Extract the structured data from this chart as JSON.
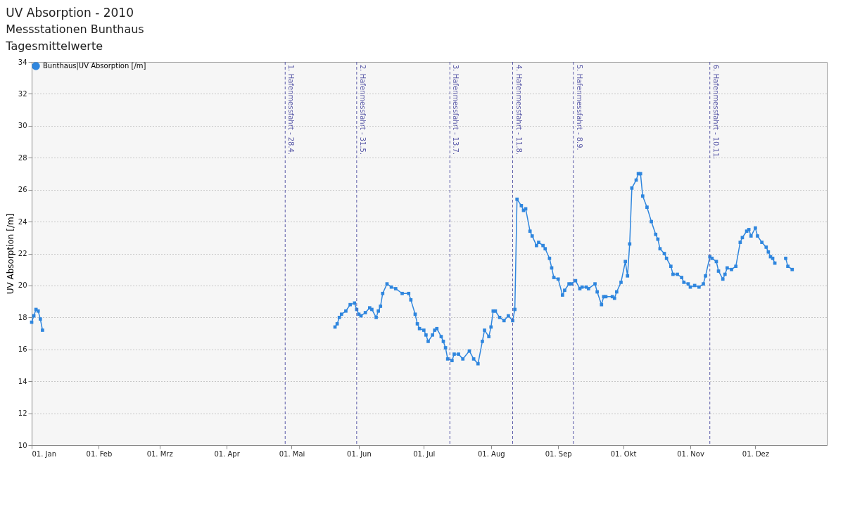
{
  "chart_data": {
    "type": "line",
    "title": "UV Absorption - 2010",
    "subtitle": "Messstationen Bunthaus\nTagesmittelwerte",
    "ylabel": "UV Absorption [/m]",
    "x": [
      "2010-01-01",
      "2010-01-02",
      "2010-01-03",
      "2010-01-04",
      "2010-01-05",
      "2010-01-06",
      "2010-01-07",
      "2010-05-21",
      "2010-05-22",
      "2010-05-23",
      "2010-05-24",
      "2010-05-26",
      "2010-05-28",
      "2010-05-30",
      "2010-05-31",
      "2010-06-01",
      "2010-06-02",
      "2010-06-04",
      "2010-06-06",
      "2010-06-07",
      "2010-06-09",
      "2010-06-10",
      "2010-06-11",
      "2010-06-12",
      "2010-06-14",
      "2010-06-16",
      "2010-06-18",
      "2010-06-21",
      "2010-06-24",
      "2010-06-25",
      "2010-06-27",
      "2010-06-28",
      "2010-06-29",
      "2010-07-01",
      "2010-07-02",
      "2010-07-03",
      "2010-07-05",
      "2010-07-06",
      "2010-07-07",
      "2010-07-09",
      "2010-07-10",
      "2010-07-11",
      "2010-07-12",
      "2010-07-14",
      "2010-07-15",
      "2010-07-17",
      "2010-07-19",
      "2010-07-22",
      "2010-07-24",
      "2010-07-26",
      "2010-07-28",
      "2010-07-29",
      "2010-07-31",
      "2010-08-01",
      "2010-08-02",
      "2010-08-03",
      "2010-08-05",
      "2010-08-07",
      "2010-08-09",
      "2010-08-11",
      "2010-08-12",
      "2010-08-13",
      "2010-08-15",
      "2010-08-16",
      "2010-08-17",
      "2010-08-19",
      "2010-08-20",
      "2010-08-22",
      "2010-08-23",
      "2010-08-25",
      "2010-08-26",
      "2010-08-28",
      "2010-08-29",
      "2010-08-30",
      "2010-09-01",
      "2010-09-03",
      "2010-09-04",
      "2010-09-06",
      "2010-09-07",
      "2010-09-09",
      "2010-09-11",
      "2010-09-12",
      "2010-09-14",
      "2010-09-15",
      "2010-09-18",
      "2010-09-19",
      "2010-09-21",
      "2010-09-22",
      "2010-09-23",
      "2010-09-26",
      "2010-09-27",
      "2010-09-28",
      "2010-09-30",
      "2010-10-02",
      "2010-10-03",
      "2010-10-04",
      "2010-10-05",
      "2010-10-07",
      "2010-10-08",
      "2010-10-09",
      "2010-10-10",
      "2010-10-12",
      "2010-10-14",
      "2010-10-16",
      "2010-10-17",
      "2010-10-18",
      "2010-10-20",
      "2010-10-21",
      "2010-10-23",
      "2010-10-24",
      "2010-10-26",
      "2010-10-28",
      "2010-10-29",
      "2010-10-31",
      "2010-11-01",
      "2010-11-03",
      "2010-11-05",
      "2010-11-07",
      "2010-11-08",
      "2010-11-10",
      "2010-11-11",
      "2010-11-13",
      "2010-11-14",
      "2010-11-16",
      "2010-11-17",
      "2010-11-18",
      "2010-11-20",
      "2010-11-22",
      "2010-11-24",
      "2010-11-25",
      "2010-11-27",
      "2010-11-28",
      "2010-11-29",
      "2010-12-01",
      "2010-12-02",
      "2010-12-04",
      "2010-12-06",
      "2010-12-07",
      "2010-12-08",
      "2010-12-09",
      "2010-12-10",
      "2010-12-12",
      "2010-12-15",
      "2010-12-16",
      "2010-12-18"
    ],
    "series": [
      {
        "name": "Bunthaus|UV Absorption [/m]",
        "color": "#2f86de",
        "values": [
          17.7,
          18.1,
          18.5,
          18.4,
          17.9,
          17.2,
          null,
          17.4,
          17.6,
          18.0,
          18.2,
          18.4,
          18.8,
          18.9,
          18.5,
          18.2,
          18.1,
          18.3,
          18.6,
          18.5,
          18.0,
          18.4,
          18.7,
          19.5,
          20.1,
          19.9,
          19.8,
          19.5,
          19.5,
          19.1,
          18.2,
          17.6,
          17.3,
          17.2,
          16.9,
          16.5,
          16.9,
          17.2,
          17.3,
          16.8,
          16.5,
          16.1,
          15.4,
          15.3,
          15.7,
          15.7,
          15.4,
          15.9,
          15.4,
          15.1,
          16.5,
          17.2,
          16.8,
          17.4,
          18.4,
          18.4,
          18.0,
          17.8,
          18.1,
          17.8,
          18.5,
          25.4,
          25.0,
          24.7,
          24.8,
          23.4,
          23.1,
          22.5,
          22.7,
          22.5,
          22.3,
          21.7,
          21.1,
          20.5,
          20.4,
          19.4,
          19.7,
          20.1,
          20.1,
          20.3,
          19.8,
          19.9,
          19.9,
          19.8,
          20.1,
          19.6,
          18.8,
          19.3,
          19.3,
          19.3,
          19.2,
          19.6,
          20.2,
          21.5,
          20.6,
          22.6,
          26.1,
          26.6,
          27.0,
          27.0,
          25.6,
          24.9,
          24.0,
          23.2,
          22.9,
          22.3,
          22.0,
          21.7,
          21.2,
          20.7,
          20.7,
          20.5,
          20.2,
          20.1,
          19.9,
          20.0,
          19.9,
          20.1,
          20.6,
          21.8,
          21.7,
          21.5,
          20.9,
          20.4,
          20.7,
          21.1,
          21.0,
          21.2,
          22.7,
          23.0,
          23.4,
          23.5,
          23.1,
          23.6,
          23.1,
          22.7,
          22.4,
          22.1,
          21.8,
          21.7,
          21.4,
          null,
          21.7,
          21.2,
          21.0
        ]
      }
    ],
    "xlim": [
      "2010-01-01",
      "2011-01-03"
    ],
    "xticks": [
      {
        "value": "2010-01-01",
        "label": "01. Jan"
      },
      {
        "value": "2010-02-01",
        "label": "01. Feb"
      },
      {
        "value": "2010-03-01",
        "label": "01. Mrz"
      },
      {
        "value": "2010-04-01",
        "label": "01. Apr"
      },
      {
        "value": "2010-05-01",
        "label": "01. Mai"
      },
      {
        "value": "2010-06-01",
        "label": "01. Jun"
      },
      {
        "value": "2010-07-01",
        "label": "01. Jul"
      },
      {
        "value": "2010-08-01",
        "label": "01. Aug"
      },
      {
        "value": "2010-09-01",
        "label": "01. Sep"
      },
      {
        "value": "2010-10-01",
        "label": "01. Okt"
      },
      {
        "value": "2010-11-01",
        "label": "01. Nov"
      },
      {
        "value": "2010-12-01",
        "label": "01. Dez"
      }
    ],
    "ylim": [
      10,
      34
    ],
    "yticks": [
      10,
      12,
      14,
      16,
      18,
      20,
      22,
      24,
      26,
      28,
      30,
      32,
      34
    ],
    "grid": "y",
    "legend": "top left",
    "marker": "square",
    "line_style": "solid",
    "ref_lines": [
      {
        "axis": "x",
        "value": "2010-04-28",
        "label": "1. Hafenmessfahrt - 28.4.",
        "color": "#5a5aa8",
        "line_style": "dashed"
      },
      {
        "axis": "x",
        "value": "2010-05-31",
        "label": "2. Hafenmessfahrt - 31.5.",
        "color": "#5a5aa8",
        "line_style": "dashed"
      },
      {
        "axis": "x",
        "value": "2010-07-13",
        "label": "3. Hafenmessfahrt - 13.7.",
        "color": "#5a5aa8",
        "line_style": "dashed"
      },
      {
        "axis": "x",
        "value": "2010-08-11",
        "label": "4. Hafenmessfahrt - 11.8.",
        "color": "#5a5aa8",
        "line_style": "dashed"
      },
      {
        "axis": "x",
        "value": "2010-09-08",
        "label": "5. Hafenmessfahrt - 8.9.",
        "color": "#5a5aa8",
        "line_style": "dashed"
      },
      {
        "axis": "x",
        "value": "2010-11-10",
        "label": "6. Hafenmessfahrt - 10.11.",
        "color": "#5a5aa8",
        "line_style": "dashed"
      }
    ]
  }
}
